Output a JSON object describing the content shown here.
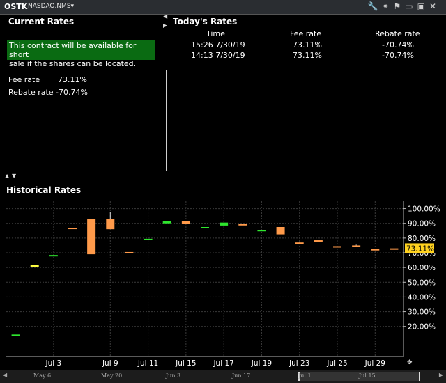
{
  "header": {
    "symbol": "OSTK",
    "exchange": "NASDAQ.NMS",
    "exchange_caret": "▾",
    "tool_icons": [
      "wrench-icon",
      "link-icon",
      "flag-icon",
      "minimize-icon",
      "maximize-icon",
      "close-icon"
    ]
  },
  "current_rates": {
    "title": "Current Rates",
    "notice_line1": "This contract will be available for short",
    "notice_line2": "sale if the shares can be located.",
    "fee_label": "Fee rate",
    "fee_value": "73.11%",
    "rebate_label": "Rebate rate",
    "rebate_value": "-70.74%"
  },
  "todays_rates": {
    "title": "Today's Rates",
    "columns": [
      "Time",
      "Fee rate",
      "Rebate rate"
    ],
    "rows": [
      {
        "time": "15:26  7/30/19",
        "fee": "73.11%",
        "rebate": "-70.74%"
      },
      {
        "time": "14:13  7/30/19",
        "fee": "73.11%",
        "rebate": "-70.74%"
      }
    ]
  },
  "historical": {
    "title": "Historical Rates",
    "current_value_tag": "73.11%"
  },
  "timeline": {
    "labels": [
      "May 6",
      "May 20",
      "Jun 3",
      "Jun 17",
      "Jul 1",
      "Jul 15"
    ]
  },
  "colors": {
    "up": "#2ee62e",
    "down": "#ff9a4a",
    "doji_yellow": "#ffff40",
    "tag": "#ffd21f",
    "notice_bg": "#0a6b12"
  },
  "chart_data": {
    "type": "candlestick",
    "title": "Historical Rates",
    "y_unit": "%",
    "ylim": [
      0,
      105
    ],
    "y_ticks": [
      20,
      30,
      40,
      50,
      60,
      70,
      80,
      90,
      100
    ],
    "y_tick_labels": [
      "20.00%",
      "30.00%",
      "40.00%",
      "50.00%",
      "60.00%",
      "70.00%",
      "80.00%",
      "90.00%",
      "100.00%"
    ],
    "x_tick_labels": [
      "Jul 3",
      "Jul 9",
      "Jul 11",
      "Jul 15",
      "Jul 17",
      "Jul 19",
      "Jul 23",
      "Jul 25",
      "Jul 29"
    ],
    "x_tick_positions": [
      2,
      5,
      7,
      9,
      11,
      13,
      15,
      17,
      19
    ],
    "bars": [
      {
        "i": 0,
        "open": 14.5,
        "close": 14.5,
        "high": 14.5,
        "low": 14.5,
        "color": "up"
      },
      {
        "i": 1,
        "open": 61.5,
        "close": 61.5,
        "high": 61.5,
        "low": 61.5,
        "color": "doji_yellow"
      },
      {
        "i": 2,
        "open": 68.5,
        "close": 68.5,
        "high": 68.5,
        "low": 68.5,
        "color": "up"
      },
      {
        "i": 3,
        "open": 86.5,
        "close": 87,
        "high": 87,
        "low": 86.5,
        "color": "down"
      },
      {
        "i": 4,
        "open": 93,
        "close": 69,
        "high": 93,
        "low": 69,
        "color": "down"
      },
      {
        "i": 5,
        "open": 93,
        "close": 86,
        "high": 97.5,
        "low": 86,
        "color": "down"
      },
      {
        "i": 6,
        "open": 70.5,
        "close": 70.5,
        "high": 70.5,
        "low": 70.5,
        "color": "down"
      },
      {
        "i": 7,
        "open": 79.5,
        "close": 79.5,
        "high": 79.5,
        "low": 79.5,
        "color": "up"
      },
      {
        "i": 8,
        "open": 90,
        "close": 91.5,
        "high": 91.5,
        "low": 90,
        "color": "up"
      },
      {
        "i": 9,
        "open": 91.5,
        "close": 89.5,
        "high": 91.5,
        "low": 89.5,
        "color": "down"
      },
      {
        "i": 10,
        "open": 87.5,
        "close": 87.5,
        "high": 87.5,
        "low": 87.5,
        "color": "up"
      },
      {
        "i": 11,
        "open": 88.5,
        "close": 90.5,
        "high": 90.5,
        "low": 88.5,
        "color": "up"
      },
      {
        "i": 12,
        "open": 89.5,
        "close": 89.5,
        "high": 89.5,
        "low": 89.5,
        "color": "down"
      },
      {
        "i": 13,
        "open": 85.5,
        "close": 85.5,
        "high": 85.5,
        "low": 85.5,
        "color": "up"
      },
      {
        "i": 14,
        "open": 87.5,
        "close": 82.5,
        "high": 87.5,
        "low": 82.5,
        "color": "down"
      },
      {
        "i": 15,
        "open": 77,
        "close": 76,
        "high": 77.5,
        "low": 76,
        "color": "down"
      },
      {
        "i": 16,
        "open": 78.5,
        "close": 78.5,
        "high": 78.5,
        "low": 78.5,
        "color": "down"
      },
      {
        "i": 17,
        "open": 74.5,
        "close": 74.5,
        "high": 74.5,
        "low": 74.5,
        "color": "down"
      },
      {
        "i": 18,
        "open": 75,
        "close": 74,
        "high": 75.5,
        "low": 74,
        "color": "down"
      },
      {
        "i": 19,
        "open": 72.5,
        "close": 72.5,
        "high": 72.5,
        "low": 72.5,
        "color": "down"
      },
      {
        "i": 20,
        "open": 73,
        "close": 73,
        "high": 73,
        "low": 73,
        "color": "down"
      }
    ]
  }
}
